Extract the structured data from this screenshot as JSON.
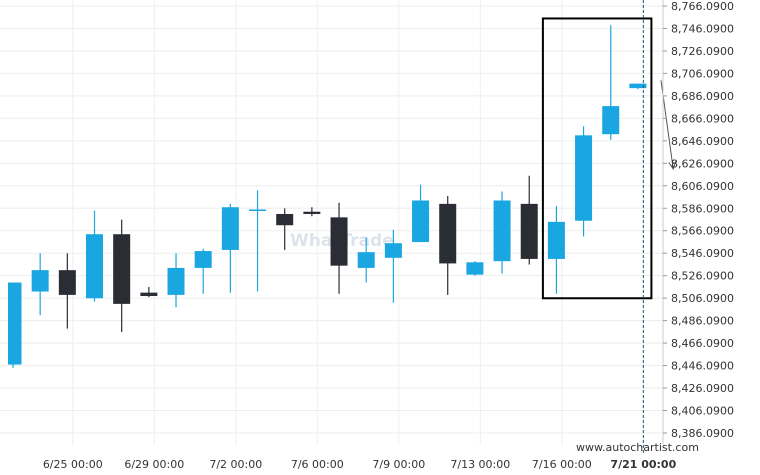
{
  "chart_data": {
    "type": "candlestick",
    "grid": true,
    "colors": {
      "up": "#1aa6e0",
      "down": "#2b2d35",
      "grid": "#eeeeee",
      "highlight": "#000000",
      "current_line": "#1e5a6e",
      "arrow": "#555555"
    },
    "y_ticks": [
      "8,766.0900",
      "8,746.0900",
      "8,726.0900",
      "8,706.0900",
      "8,686.0900",
      "8,666.0900",
      "8,646.0900",
      "8,626.0900",
      "8,606.0900",
      "8,586.0900",
      "8,566.0900",
      "8,546.0900",
      "8,526.0900",
      "8,506.0900",
      "8,486.0900",
      "8,466.0900",
      "8,446.0900",
      "8,426.0900",
      "8,406.0900",
      "8,386.0900"
    ],
    "x_ticks": [
      {
        "label": "6/25 00:00",
        "index": 2.2
      },
      {
        "label": "6/29 00:00",
        "index": 5.2
      },
      {
        "label": "7/2 00:00",
        "index": 8.2
      },
      {
        "label": "7/6 00:00",
        "index": 11.2
      },
      {
        "label": "7/9 00:00",
        "index": 14.2
      },
      {
        "label": "7/13 00:00",
        "index": 17.2
      },
      {
        "label": "7/16 00:00",
        "index": 20.2
      },
      {
        "label": "7/21 00:00",
        "index": 23.2,
        "bold": true
      }
    ],
    "candles": [
      {
        "o": 8447,
        "h": 8520,
        "l": 8444,
        "c": 8520
      },
      {
        "o": 8512,
        "h": 8546,
        "l": 8491,
        "c": 8531
      },
      {
        "o": 8531,
        "h": 8546,
        "l": 8479,
        "c": 8509
      },
      {
        "o": 8506,
        "h": 8584,
        "l": 8503,
        "c": 8563
      },
      {
        "o": 8563,
        "h": 8576,
        "l": 8476,
        "c": 8501
      },
      {
        "o": 8511,
        "h": 8516,
        "l": 8507,
        "c": 8508
      },
      {
        "o": 8509,
        "h": 8546,
        "l": 8498,
        "c": 8533
      },
      {
        "o": 8533,
        "h": 8550,
        "l": 8510,
        "c": 8548
      },
      {
        "o": 8549,
        "h": 8590,
        "l": 8511,
        "c": 8587
      },
      {
        "o": 8585,
        "h": 8602,
        "l": 8512,
        "c": 8585
      },
      {
        "o": 8581,
        "h": 8586,
        "l": 8549,
        "c": 8571
      },
      {
        "o": 8583,
        "h": 8587,
        "l": 8579,
        "c": 8581
      },
      {
        "o": 8578,
        "h": 8591,
        "l": 8510,
        "c": 8535
      },
      {
        "o": 8533,
        "h": 8560,
        "l": 8520,
        "c": 8547
      },
      {
        "o": 8542,
        "h": 8567,
        "l": 8502,
        "c": 8555
      },
      {
        "o": 8556,
        "h": 8607,
        "l": 8556,
        "c": 8593
      },
      {
        "o": 8590,
        "h": 8597,
        "l": 8509,
        "c": 8537
      },
      {
        "o": 8527,
        "h": 8539,
        "l": 8526,
        "c": 8538
      },
      {
        "o": 8539,
        "h": 8601,
        "l": 8528,
        "c": 8593
      },
      {
        "o": 8590,
        "h": 8615,
        "l": 8536,
        "c": 8541
      },
      {
        "o": 8541,
        "h": 8588,
        "l": 8510,
        "c": 8574
      },
      {
        "o": 8575,
        "h": 8659,
        "l": 8561,
        "c": 8651
      },
      {
        "o": 8652,
        "h": 8749,
        "l": 8647,
        "c": 8677
      },
      {
        "o": 8693,
        "h": 8697,
        "l": 8692,
        "c": 8697
      }
    ],
    "highlight_box": {
      "from_index": 20,
      "to_index": 23,
      "top": 8755,
      "bottom": 8506
    },
    "current_line_index": 23.2,
    "arrow": {
      "from_index": 23.85,
      "from_value": 8700,
      "to_index": 24.3,
      "to_value": 8621
    },
    "watermark": "WhatTrade",
    "credit": "www.autochartist.com"
  }
}
